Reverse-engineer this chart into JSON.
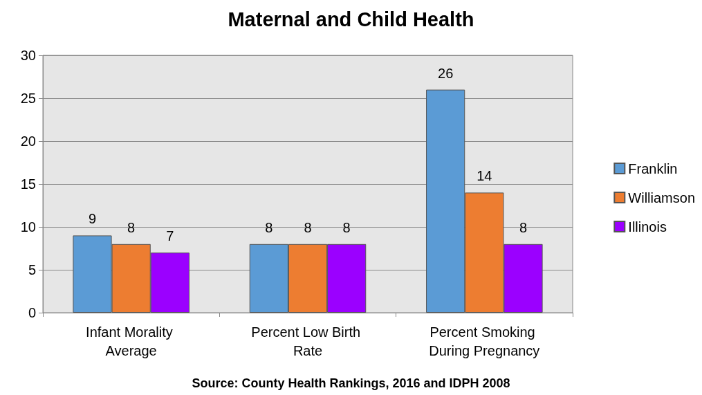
{
  "chart_data": {
    "type": "bar",
    "title": "Maternal and Child Health",
    "categories": [
      "Infant Morality Average",
      "Percent Low Birth Rate",
      "Percent Smoking During Pregnancy"
    ],
    "series": [
      {
        "name": "Franklin",
        "color": "#5b9bd5",
        "values": [
          9,
          8,
          26
        ]
      },
      {
        "name": "Williamson",
        "color": "#ed7d31",
        "values": [
          8,
          8,
          14
        ]
      },
      {
        "name": "Illinois",
        "color": "#9b00ff",
        "values": [
          7,
          8,
          8
        ]
      }
    ],
    "ylim": [
      0,
      30
    ],
    "yticks": [
      0,
      5,
      10,
      15,
      20,
      25,
      30
    ],
    "grid": "y",
    "legend": "right",
    "data_labels": true,
    "annotations": [
      "Source: County Health Rankings, 2016 and IDPH 2008"
    ]
  }
}
